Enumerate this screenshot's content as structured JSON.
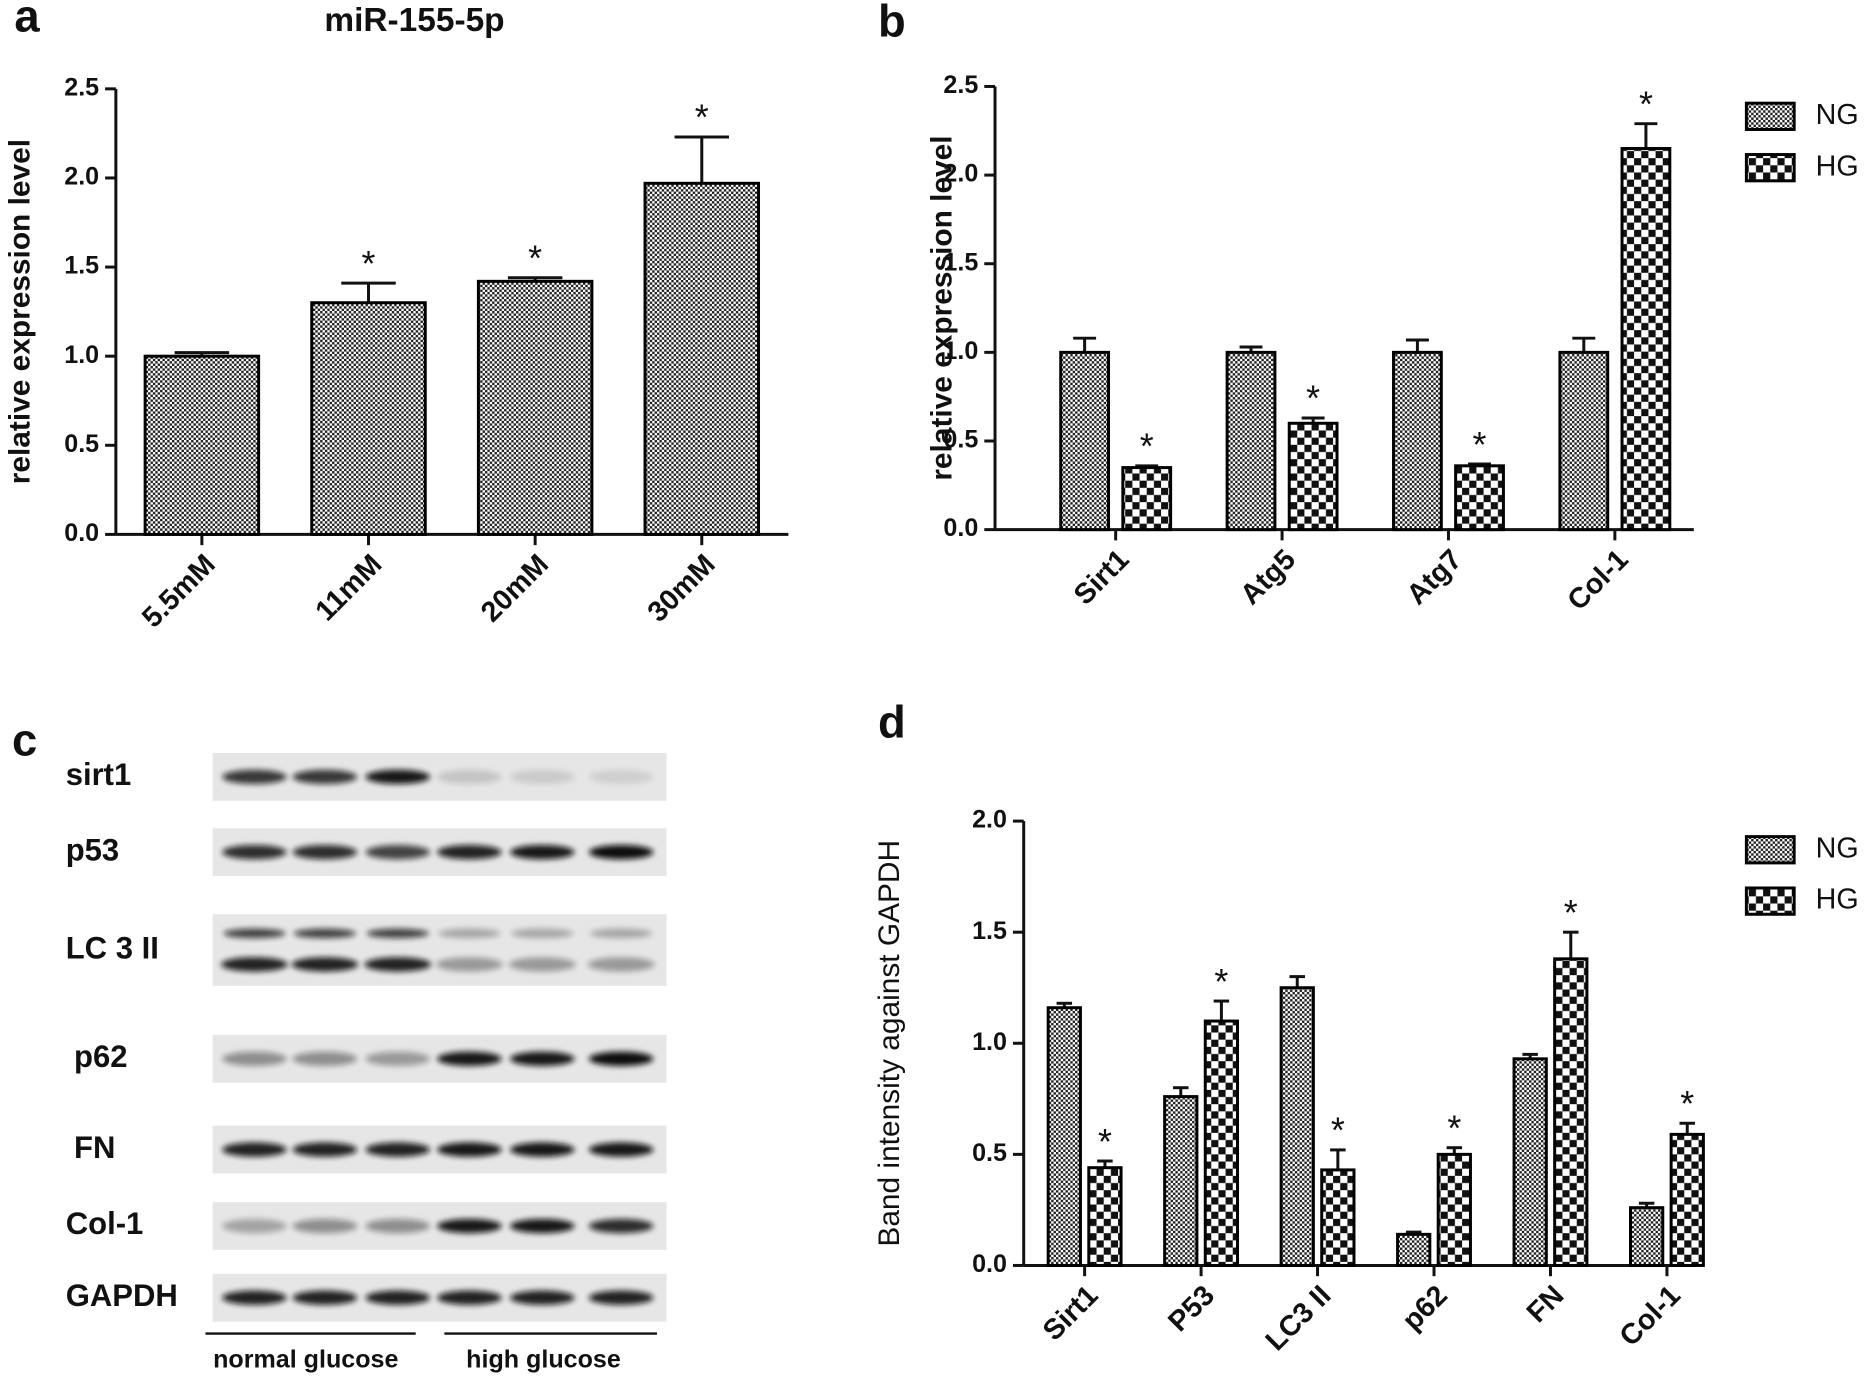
{
  "chart_data": [
    {
      "panel_label": "a",
      "type": "bar",
      "title": "miR-155-5p",
      "y_label": "relative expression level",
      "categories": [
        "5.5mM",
        "11mM",
        "20mM",
        "30mM"
      ],
      "series": [
        {
          "values": [
            1.0,
            1.3,
            1.42,
            1.97
          ],
          "errors": [
            0.02,
            0.11,
            0.02,
            0.26
          ],
          "significance": [
            null,
            "*",
            "*",
            "*"
          ],
          "pattern": "fine-checker",
          "color": "#000000"
        }
      ],
      "ylim": [
        0,
        2.5
      ],
      "yticks": [
        {
          "value": 0,
          "label": "0.0"
        },
        {
          "value": 0.5,
          "label": "0.5"
        },
        {
          "value": 1,
          "label": "1.0"
        },
        {
          "value": 1.5,
          "label": "1.5"
        },
        {
          "value": 2,
          "label": "2.0"
        },
        {
          "value": 2.5,
          "label": "2.5"
        }
      ]
    },
    {
      "panel_label": "b",
      "type": "bar",
      "y_label": "relative expression level",
      "categories": [
        "Sirt1",
        "Atg5",
        "Atg7",
        "Col-1"
      ],
      "series": [
        {
          "name": "NG",
          "values": [
            1.0,
            1.0,
            1.0,
            1.0
          ],
          "errors": [
            0.08,
            0.03,
            0.07,
            0.08
          ],
          "pattern": "fine-checker",
          "color": "#000000"
        },
        {
          "name": "HG",
          "values": [
            0.35,
            0.6,
            0.36,
            2.15
          ],
          "errors": [
            0.01,
            0.03,
            0.01,
            0.14
          ],
          "significance": [
            "*",
            "*",
            "*",
            "*"
          ],
          "pattern": "coarse-checker",
          "color": "#000000"
        }
      ],
      "ylim": [
        0,
        2.5
      ],
      "yticks": [
        {
          "value": 0,
          "label": "0.0"
        },
        {
          "value": 0.5,
          "label": "0.5"
        },
        {
          "value": 1,
          "label": "1.0"
        },
        {
          "value": 1.5,
          "label": "1.5"
        },
        {
          "value": 2,
          "label": "2.0"
        },
        {
          "value": 2.5,
          "label": "2.5"
        }
      ],
      "legend": "right"
    },
    {
      "panel_label": "d",
      "type": "bar",
      "y_label": "Band intensity against GAPDH",
      "categories": [
        "Sirt1",
        "P53",
        "LC3 II",
        "p62",
        "FN",
        "Col-1"
      ],
      "series": [
        {
          "name": "NG",
          "values": [
            1.16,
            0.76,
            1.25,
            0.14,
            0.93,
            0.26
          ],
          "errors": [
            0.02,
            0.04,
            0.05,
            0.01,
            0.02,
            0.02
          ],
          "pattern": "fine-checker",
          "color": "#000000"
        },
        {
          "name": "HG",
          "values": [
            0.44,
            1.1,
            0.43,
            0.5,
            1.38,
            0.59
          ],
          "errors": [
            0.03,
            0.09,
            0.09,
            0.03,
            0.12,
            0.05
          ],
          "significance": [
            "*",
            "*",
            "*",
            "*",
            "*",
            "*"
          ],
          "pattern": "coarse-checker",
          "color": "#000000"
        }
      ],
      "ylim": [
        0,
        2
      ],
      "yticks": [
        {
          "value": 0,
          "label": "0.0"
        },
        {
          "value": 0.5,
          "label": "0.5"
        },
        {
          "value": 1,
          "label": "1.0"
        },
        {
          "value": 1.5,
          "label": "1.5"
        },
        {
          "value": 2,
          "label": "2.0"
        }
      ],
      "legend": "right"
    }
  ],
  "blot": {
    "panel_label": "c",
    "rows": [
      "sirt1",
      "p53",
      "LC 3 II",
      "p62",
      "FN",
      "Col-1",
      "GAPDH"
    ],
    "groups": [
      "normal glucose",
      "high glucose"
    ]
  }
}
